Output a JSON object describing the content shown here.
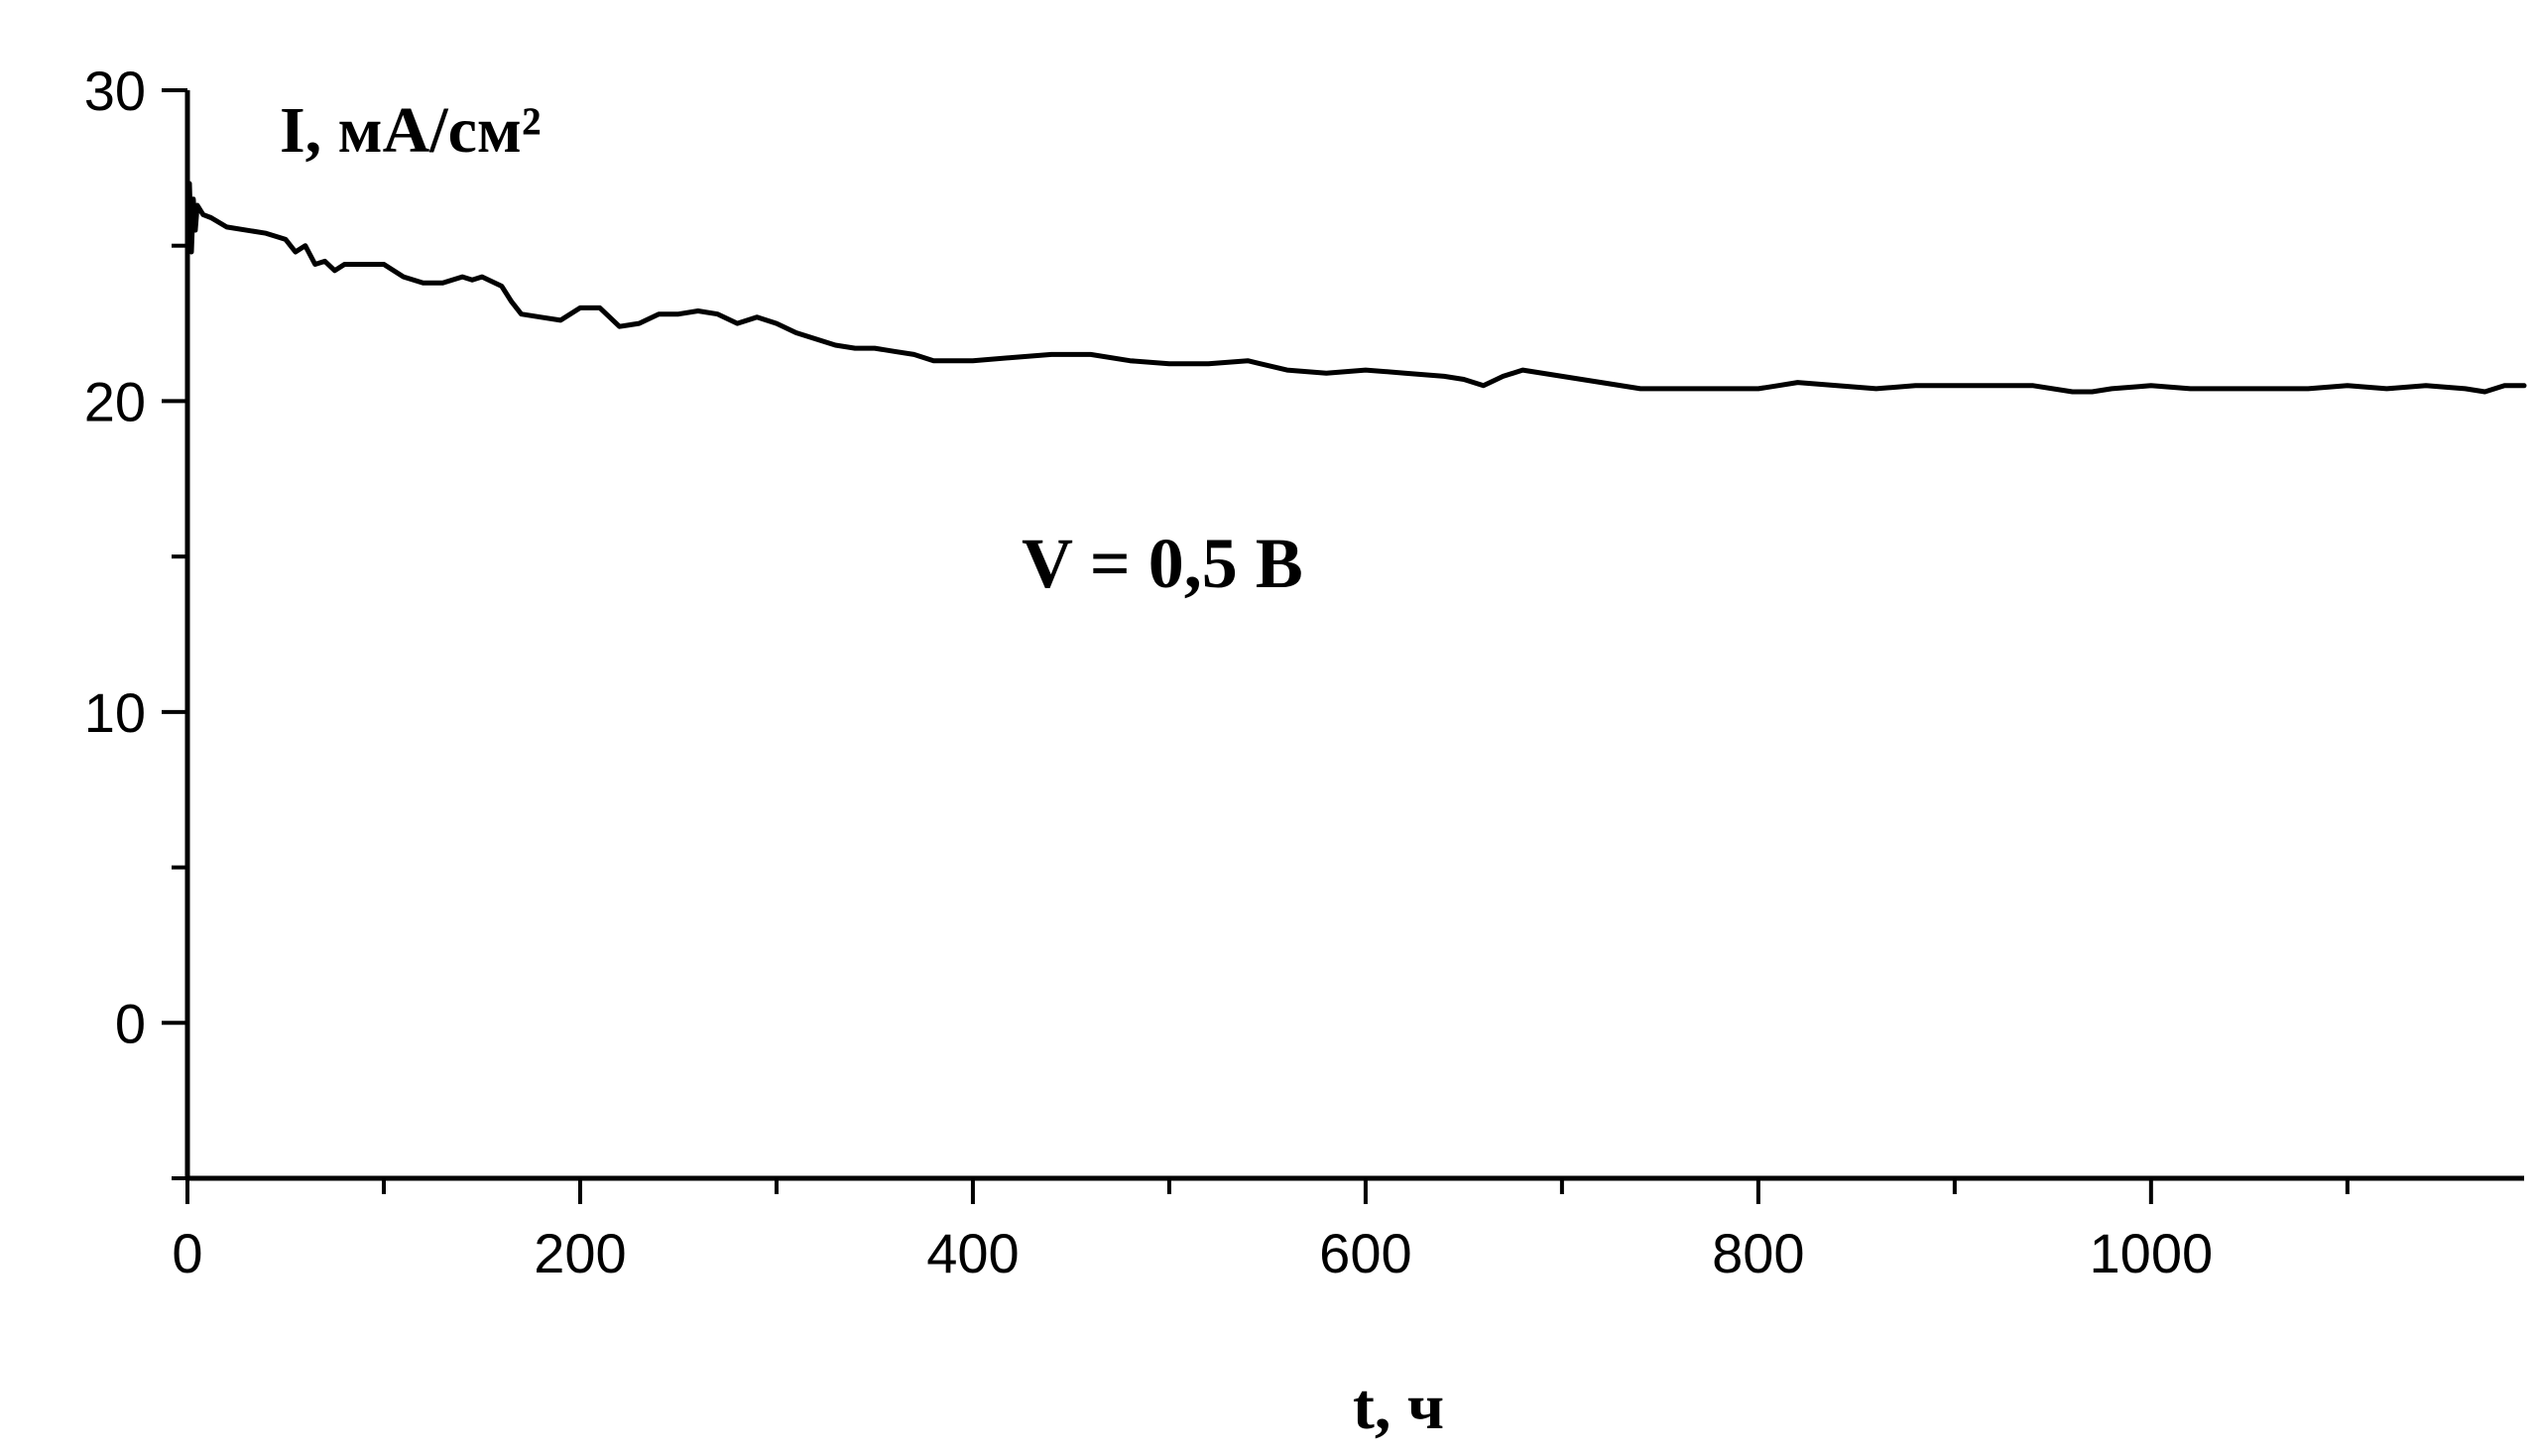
{
  "chart_data": {
    "type": "line",
    "xlabel": "t, ч",
    "ylabel": "I, мА/см²",
    "annotation": "V = 0,5 В",
    "xlim": [
      0,
      1190
    ],
    "ylim": [
      -5,
      30
    ],
    "x_ticks": [
      0,
      200,
      400,
      600,
      800,
      1000
    ],
    "x_tick_labels": [
      "0",
      "200",
      "400",
      "600",
      "800",
      "1000"
    ],
    "x_minor_ticks": [
      100,
      300,
      500,
      700,
      900,
      1100
    ],
    "y_ticks": [
      0,
      10,
      20,
      30
    ],
    "y_tick_labels": [
      "0",
      "10",
      "20",
      "30"
    ],
    "y_minor_ticks": [
      -5,
      5,
      15,
      25
    ],
    "grid": false,
    "series": [
      {
        "color": "#000000",
        "x": [
          0,
          1,
          2,
          3,
          4,
          5,
          8,
          12,
          20,
          40,
          50,
          55,
          60,
          65,
          70,
          75,
          80,
          100,
          110,
          120,
          130,
          140,
          145,
          150,
          160,
          165,
          170,
          180,
          190,
          200,
          210,
          220,
          230,
          240,
          250,
          260,
          270,
          280,
          290,
          300,
          310,
          320,
          330,
          340,
          350,
          360,
          370,
          380,
          400,
          420,
          440,
          460,
          480,
          500,
          520,
          540,
          560,
          580,
          600,
          620,
          640,
          650,
          660,
          670,
          680,
          700,
          720,
          740,
          760,
          780,
          800,
          810,
          820,
          840,
          860,
          880,
          900,
          920,
          940,
          960,
          970,
          980,
          1000,
          1020,
          1040,
          1060,
          1080,
          1100,
          1120,
          1140,
          1160,
          1170,
          1180,
          1190
        ],
        "y": [
          25.0,
          27.0,
          24.8,
          26.5,
          25.5,
          26.3,
          26.0,
          25.9,
          25.6,
          25.4,
          25.2,
          24.8,
          25.0,
          24.4,
          24.5,
          24.2,
          24.4,
          24.4,
          24.0,
          23.8,
          23.8,
          24.0,
          23.9,
          24.0,
          23.7,
          23.2,
          22.8,
          22.7,
          22.6,
          23.0,
          23.0,
          22.4,
          22.5,
          22.8,
          22.8,
          22.9,
          22.8,
          22.5,
          22.7,
          22.5,
          22.2,
          22.0,
          21.8,
          21.7,
          21.7,
          21.6,
          21.5,
          21.3,
          21.3,
          21.4,
          21.5,
          21.5,
          21.3,
          21.2,
          21.2,
          21.3,
          21.0,
          20.9,
          21.0,
          20.9,
          20.8,
          20.7,
          20.5,
          20.8,
          21.0,
          20.8,
          20.6,
          20.4,
          20.4,
          20.4,
          20.4,
          20.5,
          20.6,
          20.5,
          20.4,
          20.5,
          20.5,
          20.5,
          20.5,
          20.3,
          20.3,
          20.4,
          20.5,
          20.4,
          20.4,
          20.4,
          20.4,
          20.5,
          20.4,
          20.5,
          20.4,
          20.3,
          20.5,
          20.5
        ]
      }
    ]
  }
}
